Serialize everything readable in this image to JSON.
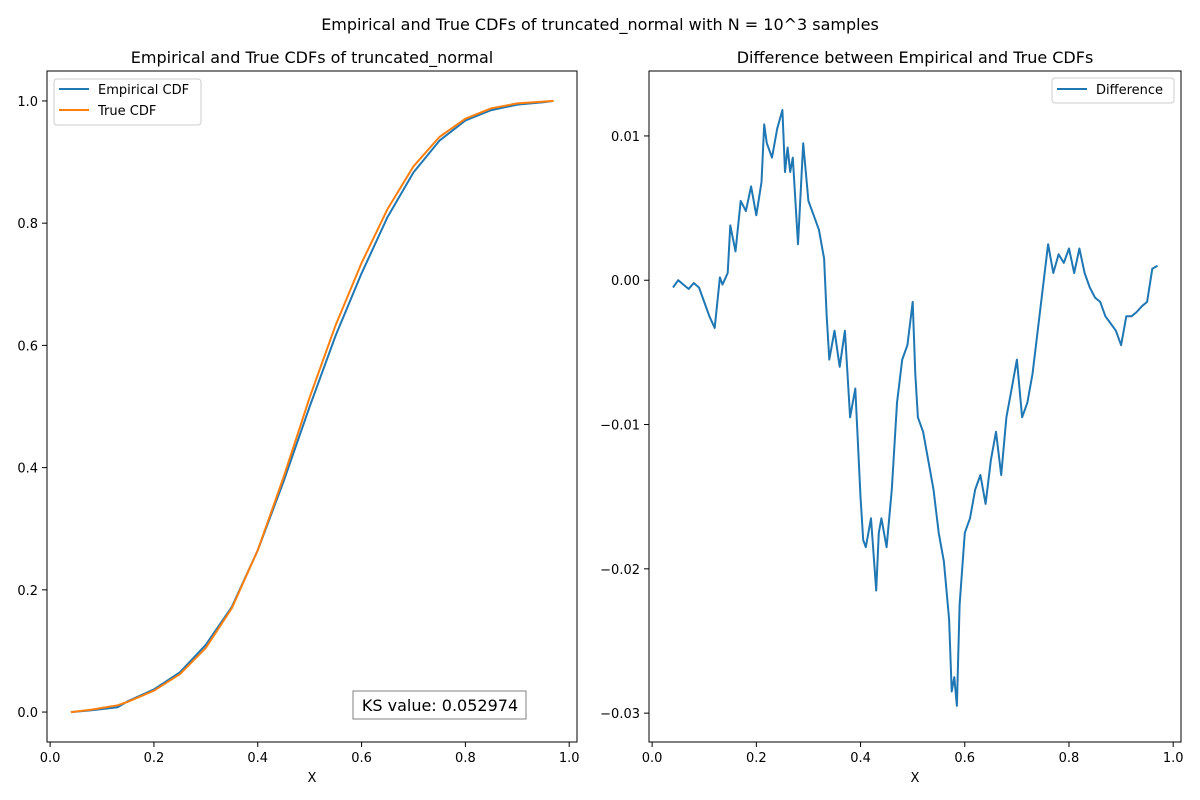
{
  "figure": {
    "suptitle": "Empirical and True CDFs of truncated_normal with N = 10^3 samples"
  },
  "colors": {
    "empirical": "#1f77b4",
    "true_cdf": "#ff7f0e",
    "difference": "#1f77b4",
    "axes": "#000000",
    "legend_border": "#cccccc",
    "annotation_border": "#808080"
  },
  "chart_data": [
    {
      "type": "line",
      "title": "Empirical and True CDFs of truncated_normal",
      "xlabel": "X",
      "ylabel": "",
      "xlim": [
        -0.006,
        1.015
      ],
      "ylim": [
        -0.049,
        1.049
      ],
      "xticks": [
        0.0,
        0.2,
        0.4,
        0.6,
        0.8,
        1.0
      ],
      "xtick_labels": [
        "0.0",
        "0.2",
        "0.4",
        "0.6",
        "0.8",
        "1.0"
      ],
      "yticks": [
        0.0,
        0.2,
        0.4,
        0.6,
        0.8,
        1.0
      ],
      "ytick_labels": [
        "0.0",
        "0.2",
        "0.4",
        "0.6",
        "0.8",
        "1.0"
      ],
      "grid": false,
      "legend_position": "top-left",
      "annotation": "KS value: 0.052974",
      "series": [
        {
          "name": "Empirical CDF",
          "color": "#1f77b4",
          "x": [
            0.04,
            0.08,
            0.13,
            0.15,
            0.2,
            0.25,
            0.3,
            0.35,
            0.4,
            0.45,
            0.5,
            0.55,
            0.6,
            0.65,
            0.7,
            0.75,
            0.8,
            0.85,
            0.9,
            0.95,
            0.97
          ],
          "y": [
            0.0,
            0.003,
            0.008,
            0.018,
            0.037,
            0.065,
            0.11,
            0.172,
            0.265,
            0.378,
            0.5,
            0.616,
            0.718,
            0.81,
            0.883,
            0.935,
            0.968,
            0.985,
            0.994,
            0.998,
            1.0
          ]
        },
        {
          "name": "True CDF",
          "color": "#ff7f0e",
          "x": [
            0.04,
            0.08,
            0.13,
            0.15,
            0.2,
            0.25,
            0.3,
            0.35,
            0.4,
            0.45,
            0.5,
            0.55,
            0.6,
            0.65,
            0.7,
            0.75,
            0.8,
            0.85,
            0.9,
            0.95,
            0.97
          ],
          "y": [
            0.0,
            0.004,
            0.011,
            0.017,
            0.035,
            0.062,
            0.105,
            0.17,
            0.265,
            0.385,
            0.515,
            0.633,
            0.735,
            0.823,
            0.893,
            0.941,
            0.971,
            0.988,
            0.996,
            0.999,
            1.0
          ]
        }
      ]
    },
    {
      "type": "line",
      "title": "Difference between Empirical and True CDFs",
      "xlabel": "X",
      "ylabel": "",
      "xlim": [
        -0.006,
        1.015
      ],
      "ylim": [
        -0.032,
        0.0145
      ],
      "xticks": [
        0.0,
        0.2,
        0.4,
        0.6,
        0.8,
        1.0
      ],
      "xtick_labels": [
        "0.0",
        "0.2",
        "0.4",
        "0.6",
        "0.8",
        "1.0"
      ],
      "yticks": [
        0.01,
        0.0,
        -0.01,
        -0.02,
        -0.03
      ],
      "ytick_labels": [
        "0.01",
        "0.00",
        "−0.01",
        "−0.02",
        "−0.03"
      ],
      "grid": false,
      "legend_position": "top-right",
      "series": [
        {
          "name": "Difference",
          "color": "#1f77b4",
          "x": [
            0.04,
            0.05,
            0.06,
            0.07,
            0.08,
            0.09,
            0.1,
            0.11,
            0.12,
            0.13,
            0.135,
            0.14,
            0.145,
            0.15,
            0.16,
            0.17,
            0.18,
            0.19,
            0.2,
            0.21,
            0.215,
            0.22,
            0.23,
            0.24,
            0.25,
            0.255,
            0.26,
            0.265,
            0.27,
            0.28,
            0.29,
            0.3,
            0.31,
            0.32,
            0.33,
            0.335,
            0.34,
            0.35,
            0.36,
            0.37,
            0.38,
            0.39,
            0.4,
            0.405,
            0.41,
            0.42,
            0.43,
            0.435,
            0.44,
            0.45,
            0.46,
            0.47,
            0.48,
            0.49,
            0.5,
            0.505,
            0.51,
            0.52,
            0.53,
            0.54,
            0.55,
            0.56,
            0.57,
            0.575,
            0.58,
            0.585,
            0.59,
            0.6,
            0.61,
            0.62,
            0.63,
            0.64,
            0.65,
            0.66,
            0.67,
            0.68,
            0.69,
            0.7,
            0.71,
            0.72,
            0.73,
            0.74,
            0.75,
            0.76,
            0.77,
            0.78,
            0.79,
            0.8,
            0.81,
            0.82,
            0.83,
            0.84,
            0.85,
            0.86,
            0.87,
            0.88,
            0.89,
            0.9,
            0.91,
            0.92,
            0.93,
            0.94,
            0.95,
            0.96,
            0.97
          ],
          "y": [
            -0.0005,
            0.0,
            -0.0003,
            -0.0006,
            -0.0002,
            -0.0005,
            -0.0015,
            -0.0025,
            -0.0033,
            0.0002,
            -0.0003,
            0.0001,
            0.0005,
            0.0038,
            0.002,
            0.0055,
            0.0048,
            0.0065,
            0.0045,
            0.0068,
            0.0108,
            0.0095,
            0.0085,
            0.0105,
            0.0118,
            0.0075,
            0.0092,
            0.0075,
            0.0085,
            0.0025,
            0.0095,
            0.0055,
            0.0045,
            0.0035,
            0.0015,
            -0.0025,
            -0.0055,
            -0.0035,
            -0.006,
            -0.0035,
            -0.0095,
            -0.0075,
            -0.015,
            -0.018,
            -0.0185,
            -0.0165,
            -0.0215,
            -0.0175,
            -0.0165,
            -0.0185,
            -0.0145,
            -0.0085,
            -0.0055,
            -0.0045,
            -0.0015,
            -0.0065,
            -0.0095,
            -0.0105,
            -0.0125,
            -0.0145,
            -0.0175,
            -0.0195,
            -0.0235,
            -0.0285,
            -0.0275,
            -0.0295,
            -0.0225,
            -0.0175,
            -0.0165,
            -0.0145,
            -0.0135,
            -0.0155,
            -0.0125,
            -0.0105,
            -0.0135,
            -0.0095,
            -0.0075,
            -0.0055,
            -0.0095,
            -0.0085,
            -0.0065,
            -0.0035,
            -0.0005,
            0.0025,
            0.0005,
            0.0018,
            0.0012,
            0.0022,
            0.0005,
            0.0022,
            0.0005,
            -0.0005,
            -0.0012,
            -0.0015,
            -0.0025,
            -0.003,
            -0.0035,
            -0.0045,
            -0.0025,
            -0.0025,
            -0.0022,
            -0.0018,
            -0.0015,
            0.0008,
            0.001
          ]
        }
      ]
    }
  ],
  "legend_labels": {
    "left_empirical": "Empirical CDF",
    "left_true": "True CDF",
    "right_difference": "Difference"
  }
}
